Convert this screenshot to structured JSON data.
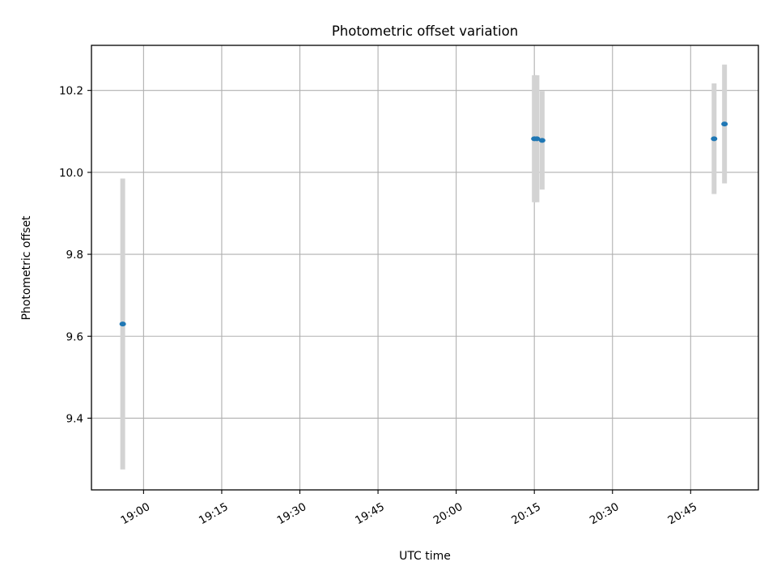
{
  "chart_data": {
    "type": "scatter",
    "title": "Photometric offset variation",
    "xlabel": "UTC time",
    "ylabel": "Photometric offset",
    "x_axis": "time",
    "xlim": [
      "18:50",
      "20:58"
    ],
    "ylim": [
      9.225,
      10.31
    ],
    "xticks": [
      "19:00",
      "19:15",
      "19:30",
      "19:45",
      "20:00",
      "20:15",
      "20:30",
      "20:45"
    ],
    "yticks": [
      9.4,
      9.6,
      9.8,
      10.0,
      10.2
    ],
    "grid": true,
    "legend": false,
    "series": [
      {
        "x": [
          "18:56",
          "20:15",
          "20:15:30",
          "20:16:30",
          "20:49:30",
          "20:51:30"
        ],
        "y": [
          9.63,
          10.082,
          10.082,
          10.078,
          10.082,
          10.118
        ],
        "yerr": [
          0.355,
          0.155,
          0.155,
          0.12,
          0.135,
          0.145
        ]
      }
    ],
    "colors": {
      "point": "#1f77b4",
      "errorbar": "#d3d3d3",
      "grid": "#b0b0b0"
    }
  }
}
